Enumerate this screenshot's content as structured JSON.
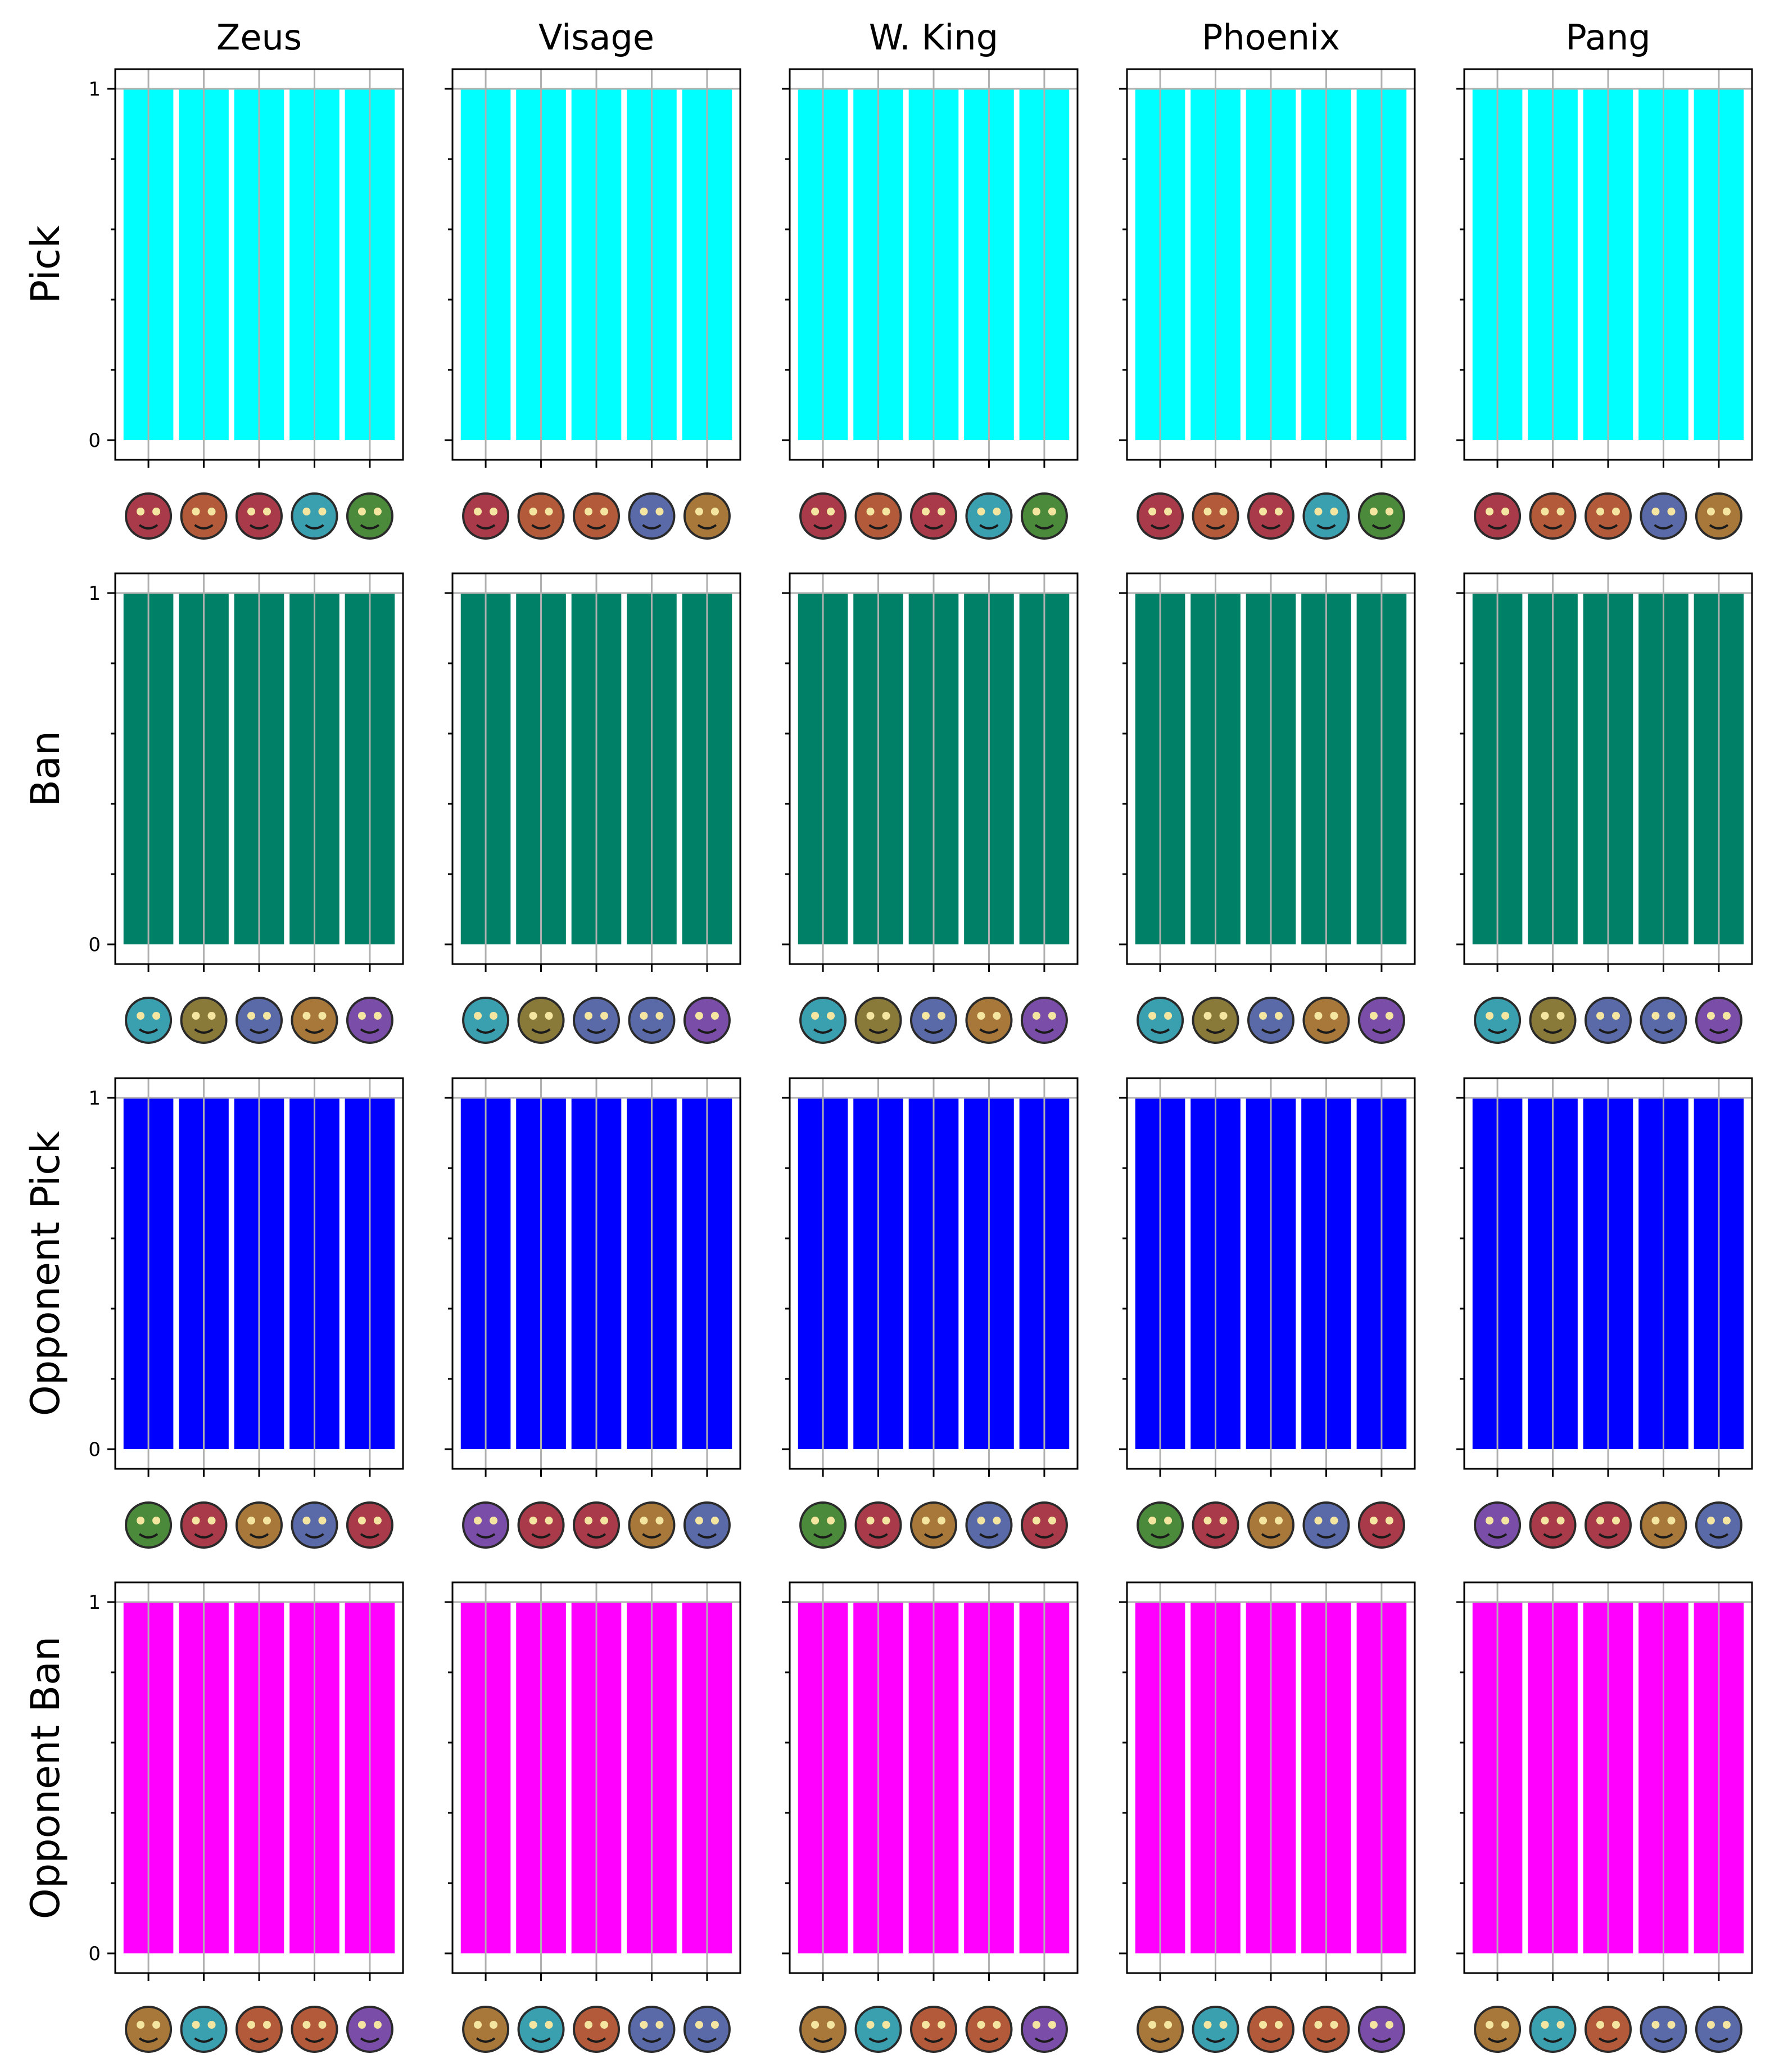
{
  "colors": {
    "pick": "#00ffff",
    "ban": "#008066",
    "opponent_pick": "#0000ff",
    "opponent_ban": "#ff00ff",
    "grid": "#b0b0b0",
    "axis": "#000000"
  },
  "chart_data": {
    "type": "bar",
    "layout": "grid",
    "grid_lines": "vertical and y=1",
    "columns": [
      "Zeus",
      "Visage",
      "W. King",
      "Phoenix",
      "Pang"
    ],
    "rows": [
      {
        "label": "Pick",
        "color": "pick"
      },
      {
        "label": "Ban",
        "color": "ban"
      },
      {
        "label": "Opponent Pick",
        "color": "opponent_pick"
      },
      {
        "label": "Opponent Ban",
        "color": "opponent_ban"
      }
    ],
    "ylim": [
      0,
      1
    ],
    "yticks": [
      "0",
      "1"
    ],
    "values": [
      1,
      1,
      1,
      1,
      1
    ],
    "hero_icons": [
      [
        [
          "zeus-icon",
          "axe-icon",
          "tusk-icon",
          "lion-icon",
          "chaos-knight-icon"
        ],
        [
          "skywrath-icon",
          "morphling-icon",
          "razor-icon",
          "treant-icon",
          "pangolier-icon"
        ],
        [
          "zeus-icon",
          "axe-icon",
          "tusk-icon",
          "lion-icon",
          "chaos-knight-icon"
        ],
        [
          "zeus-icon",
          "axe-icon",
          "tusk-icon",
          "lion-icon",
          "chaos-knight-icon"
        ],
        [
          "skywrath-icon",
          "morphling-icon",
          "razor-icon",
          "treant-icon",
          "pangolier-icon"
        ]
      ],
      [
        [
          "brewmaster-icon",
          "slardar-icon",
          "tiny-icon",
          "pangolier-icon",
          "kunkka-icon"
        ],
        [
          "brewmaster-icon",
          "slardar-icon",
          "weaver-icon",
          "tiny-icon",
          "kunkka-icon"
        ],
        [
          "brewmaster-icon",
          "slardar-icon",
          "tiny-icon",
          "pangolier-icon",
          "kunkka-icon"
        ],
        [
          "brewmaster-icon",
          "slardar-icon",
          "tiny-icon",
          "pangolier-icon",
          "kunkka-icon"
        ],
        [
          "brewmaster-icon",
          "slardar-icon",
          "weaver-icon",
          "tiny-icon",
          "kunkka-icon"
        ]
      ],
      [
        [
          "viper-icon",
          "dark-willow-icon",
          "tinker-icon",
          "ancient-apparition-icon",
          "beastmaster-icon"
        ],
        [
          "windranger-icon",
          "dark-willow-icon",
          "magnus-icon",
          "medusa-icon",
          "disruptor-icon"
        ],
        [
          "viper-icon",
          "dark-willow-icon",
          "tinker-icon",
          "ancient-apparition-icon",
          "beastmaster-icon"
        ],
        [
          "viper-icon",
          "dark-willow-icon",
          "tinker-icon",
          "ancient-apparition-icon",
          "beastmaster-icon"
        ],
        [
          "windranger-icon",
          "dark-willow-icon",
          "magnus-icon",
          "medusa-icon",
          "disruptor-icon"
        ]
      ],
      [
        [
          "bloodseeker-icon",
          "earth-spirit-icon",
          "io-icon",
          "centaur-icon",
          "pudge-icon"
        ],
        [
          "bloodseeker-icon",
          "earth-spirit-icon",
          "io-icon",
          "treant-icon",
          "ancient-apparition-icon"
        ],
        [
          "bloodseeker-icon",
          "earth-spirit-icon",
          "io-icon",
          "centaur-icon",
          "pudge-icon"
        ],
        [
          "bloodseeker-icon",
          "earth-spirit-icon",
          "io-icon",
          "centaur-icon",
          "pudge-icon"
        ],
        [
          "bloodseeker-icon",
          "earth-spirit-icon",
          "io-icon",
          "treant-icon",
          "ancient-apparition-icon"
        ]
      ]
    ]
  }
}
